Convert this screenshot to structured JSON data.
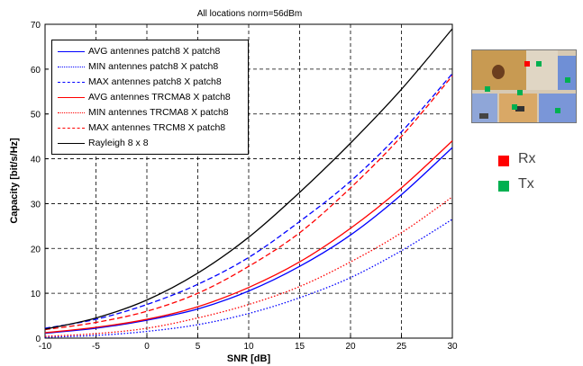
{
  "chart_data": {
    "type": "line",
    "title": "All locations norm=56dBm",
    "xlabel": "SNR [dB]",
    "ylabel": "Capacity [bit/s/Hz]",
    "xlim": [
      -10,
      30
    ],
    "ylim": [
      0,
      70
    ],
    "xticks": [
      -10,
      -5,
      0,
      5,
      10,
      15,
      20,
      25,
      30
    ],
    "yticks": [
      0,
      10,
      20,
      30,
      40,
      50,
      60,
      70
    ],
    "grid": true,
    "legend_position": "top-left",
    "x": [
      -10,
      -5,
      0,
      5,
      10,
      15,
      20,
      25,
      30
    ],
    "series": [
      {
        "name": "AVG antennes patch8 X patch8",
        "color": "#0000ff",
        "style": "solid",
        "values": [
          1.1,
          2.2,
          4.0,
          6.5,
          10.5,
          16.0,
          23.0,
          32.0,
          42.5
        ]
      },
      {
        "name": "MIN antennes patch8 X patch8",
        "color": "#0000ff",
        "style": "dotted",
        "values": [
          0.2,
          0.6,
          1.5,
          3.0,
          5.5,
          9.0,
          13.5,
          19.5,
          26.5
        ]
      },
      {
        "name": "MAX antennes patch8 X patch8",
        "color": "#0000ff",
        "style": "dashed",
        "values": [
          2.2,
          4.2,
          7.5,
          12.0,
          18.0,
          26.0,
          35.0,
          46.0,
          59.0
        ]
      },
      {
        "name": "AVG antennes TRCMA8 X patch8",
        "color": "#ff0000",
        "style": "solid",
        "values": [
          1.2,
          2.4,
          4.2,
          7.0,
          11.3,
          17.0,
          24.5,
          33.5,
          44.0
        ]
      },
      {
        "name": "MIN antennes TRCMA8 X patch8",
        "color": "#ff0000",
        "style": "dotted",
        "values": [
          0.4,
          1.0,
          2.2,
          4.5,
          7.5,
          11.5,
          17.0,
          23.5,
          31.5
        ]
      },
      {
        "name": "MAX antennes TRCM8 X patch8",
        "color": "#ff0000",
        "style": "dashed",
        "values": [
          1.9,
          3.5,
          6.0,
          10.0,
          16.0,
          23.5,
          33.5,
          45.0,
          58.5
        ]
      },
      {
        "name": "Rayleigh 8 x 8",
        "color": "#000000",
        "style": "solid",
        "values": [
          2.0,
          4.5,
          8.5,
          14.5,
          22.5,
          32.5,
          43.5,
          55.5,
          69.0
        ]
      }
    ]
  },
  "inset": {
    "legend_items": [
      {
        "label": "Rx",
        "color": "#ff0000"
      },
      {
        "label": "Tx",
        "color": "#00b050"
      }
    ]
  }
}
